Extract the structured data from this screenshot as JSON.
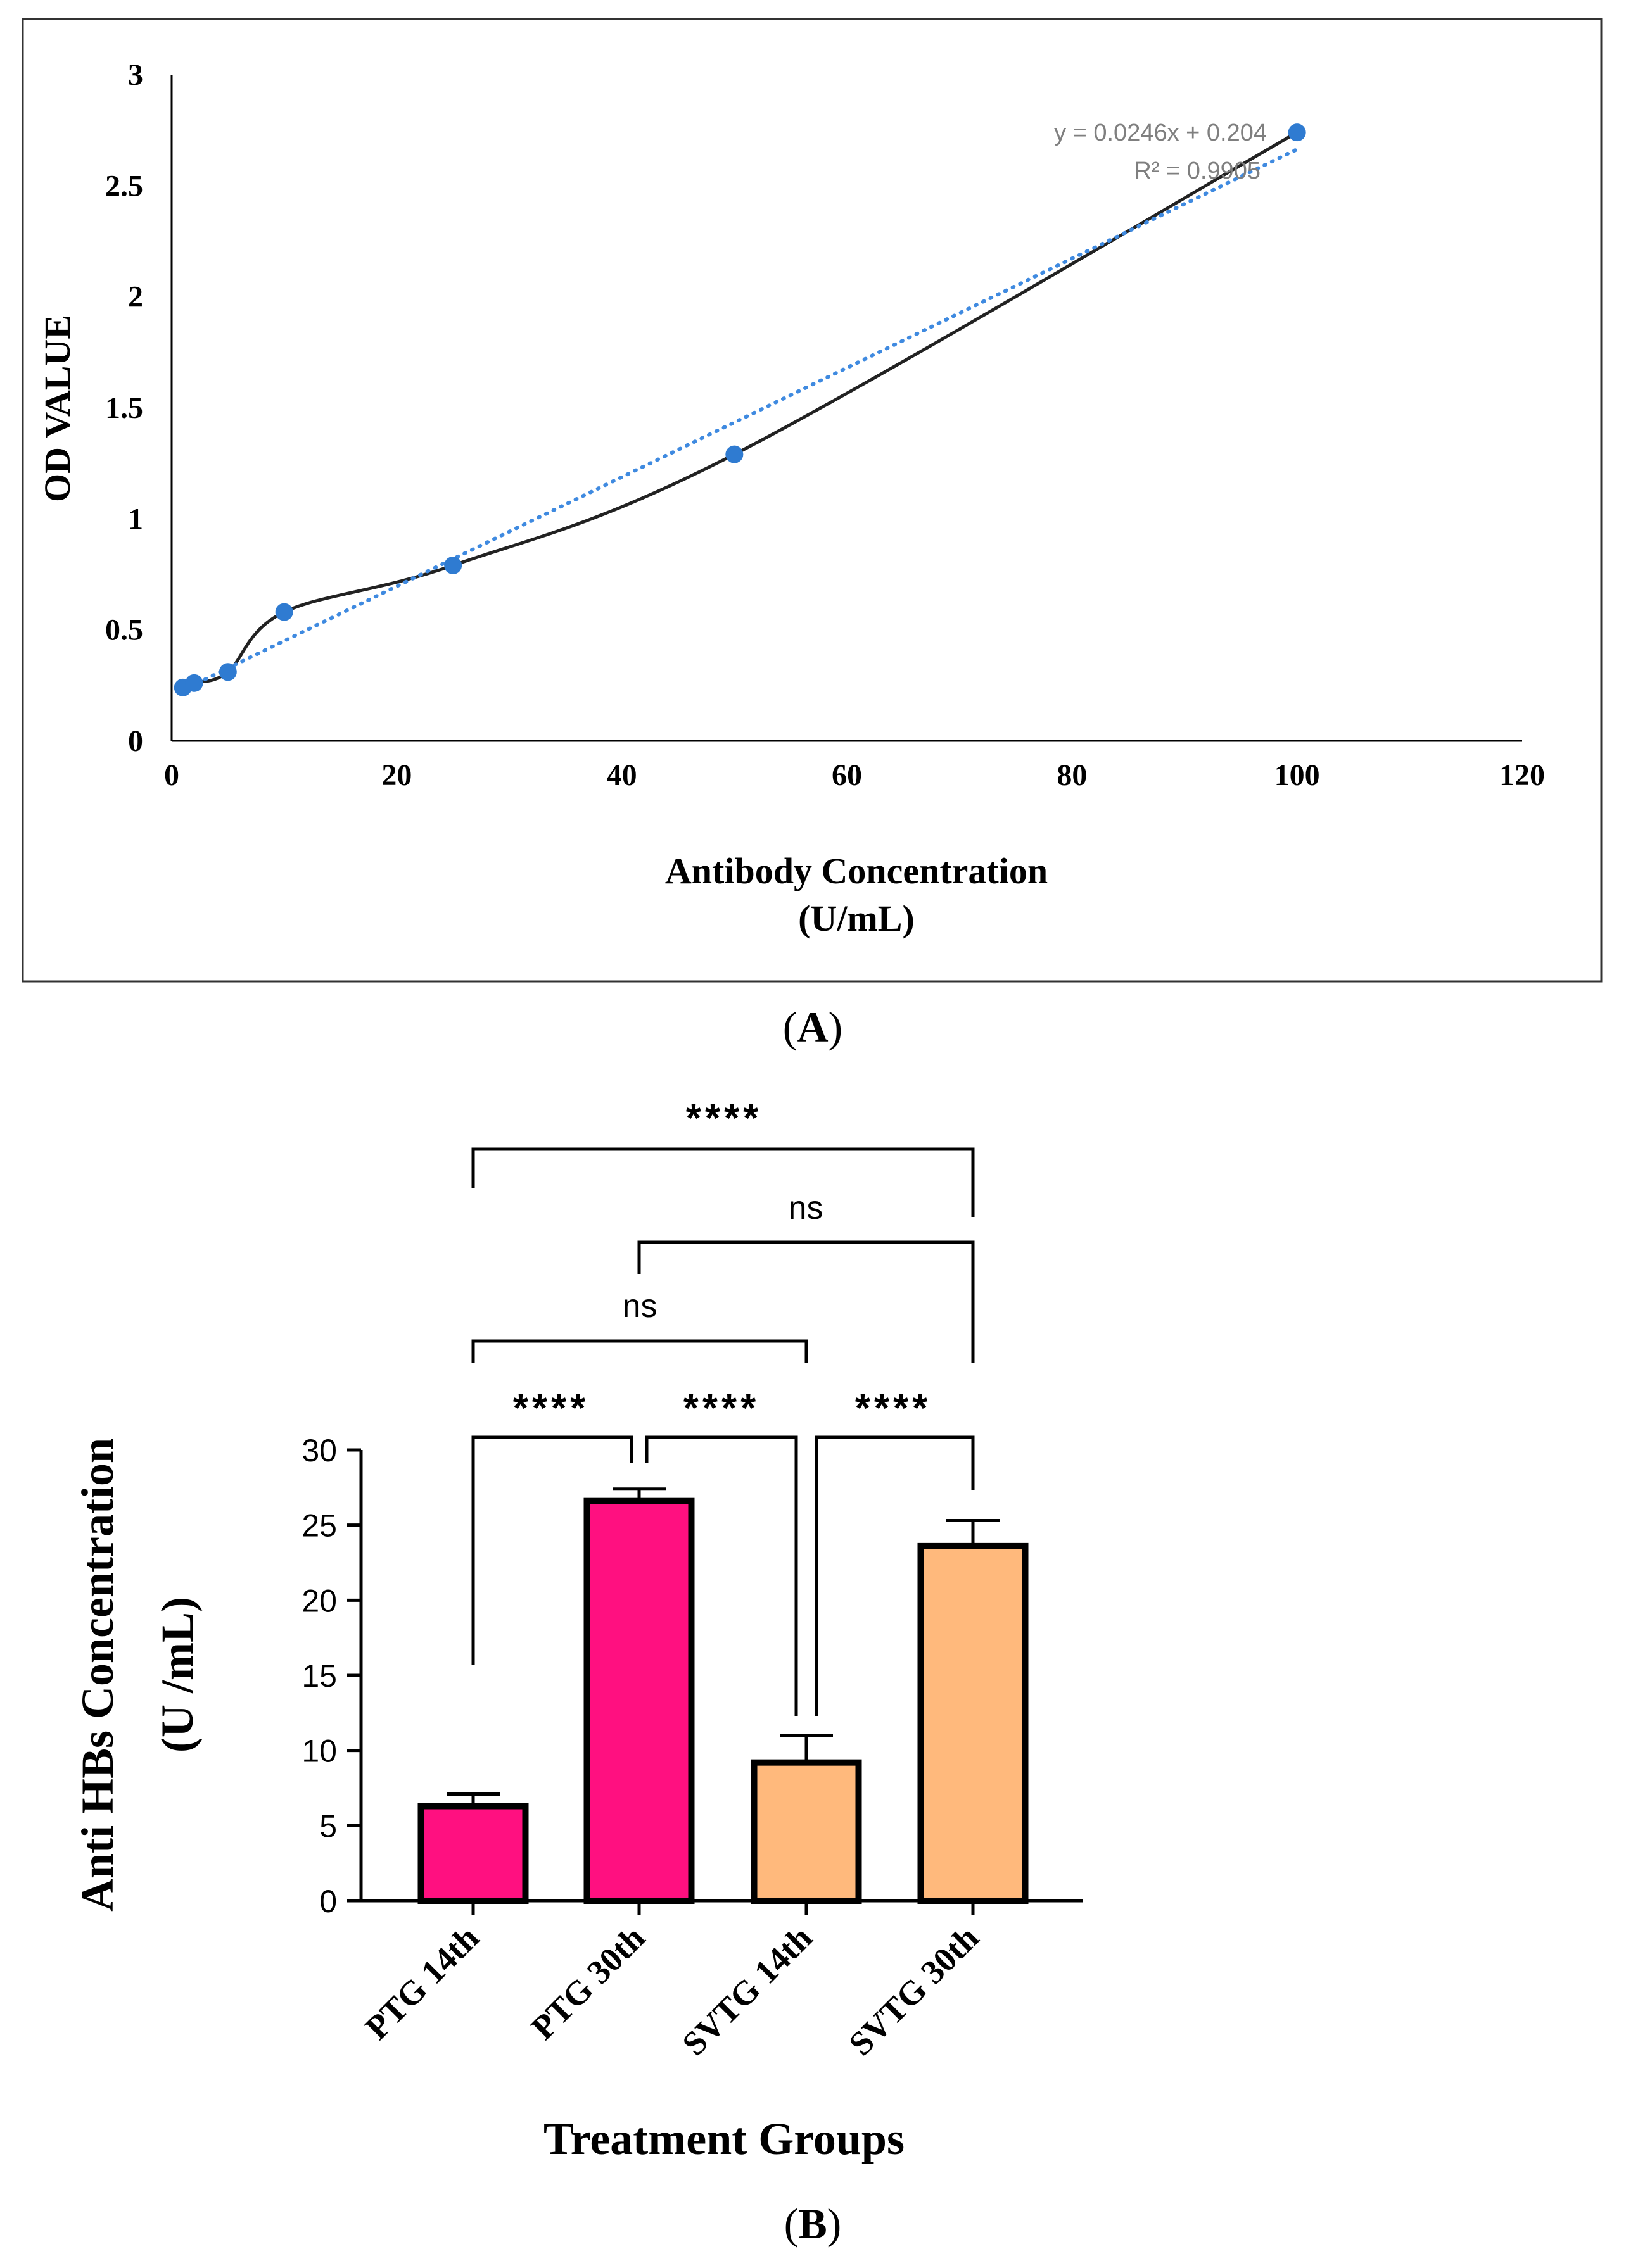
{
  "chart_data": [
    {
      "panel": "A",
      "type": "scatter",
      "title": "",
      "xlabel": "Antibody Concentration",
      "xlabel_line2": "(U/mL)",
      "ylabel": "OD VALUE",
      "xlim": [
        0,
        120
      ],
      "ylim": [
        0,
        3
      ],
      "xticks": [
        "0",
        "20",
        "40",
        "60",
        "80",
        "100",
        "120"
      ],
      "yticks": [
        "0",
        "0.5",
        "1",
        "1.5",
        "2",
        "2.5",
        "3"
      ],
      "grid": false,
      "points": [
        {
          "x": 1,
          "y": 0.24
        },
        {
          "x": 2,
          "y": 0.26
        },
        {
          "x": 5,
          "y": 0.31
        },
        {
          "x": 10,
          "y": 0.58
        },
        {
          "x": 25,
          "y": 0.79
        },
        {
          "x": 50,
          "y": 1.29
        },
        {
          "x": 100,
          "y": 2.74
        }
      ],
      "trendline": {
        "slope": 0.0246,
        "intercept": 0.204,
        "style": "dotted"
      },
      "equation_text": "y = 0.0246x + 0.204",
      "r2_text": "R² = 0.9905",
      "colors": {
        "points": "#2f7bd1",
        "trendline": "#3f8ae0",
        "curve": "#222222"
      }
    },
    {
      "panel": "B",
      "type": "bar",
      "title": "",
      "xlabel": "Treatment Groups",
      "ylabel": "Anti HBs Concentration",
      "ylabel_line2": "(U /mL)",
      "ylim": [
        0,
        30
      ],
      "yticks": [
        "0",
        "5",
        "10",
        "15",
        "20",
        "25",
        "30"
      ],
      "categories": [
        "PTG 14th",
        "PTG 30th",
        "SVTG 14th",
        "SVTG 30th"
      ],
      "values": [
        6.3,
        26.6,
        9.2,
        23.6
      ],
      "errors": [
        0.8,
        0.8,
        1.8,
        1.7
      ],
      "bar_colors": [
        "#ff1080",
        "#ff1080",
        "#ffb97c",
        "#ffb97c"
      ],
      "significance": [
        {
          "from": 0,
          "to": 3,
          "label": "****"
        },
        {
          "from": 1,
          "to": 3,
          "label": "ns"
        },
        {
          "from": 0,
          "to": 2,
          "label": "ns"
        },
        {
          "from": 0,
          "to": 1,
          "label": "****"
        },
        {
          "from": 1,
          "to": 2,
          "label": "****"
        },
        {
          "from": 2,
          "to": 3,
          "label": "****"
        }
      ]
    }
  ],
  "panel_labels": {
    "a": "A",
    "b": "B"
  }
}
